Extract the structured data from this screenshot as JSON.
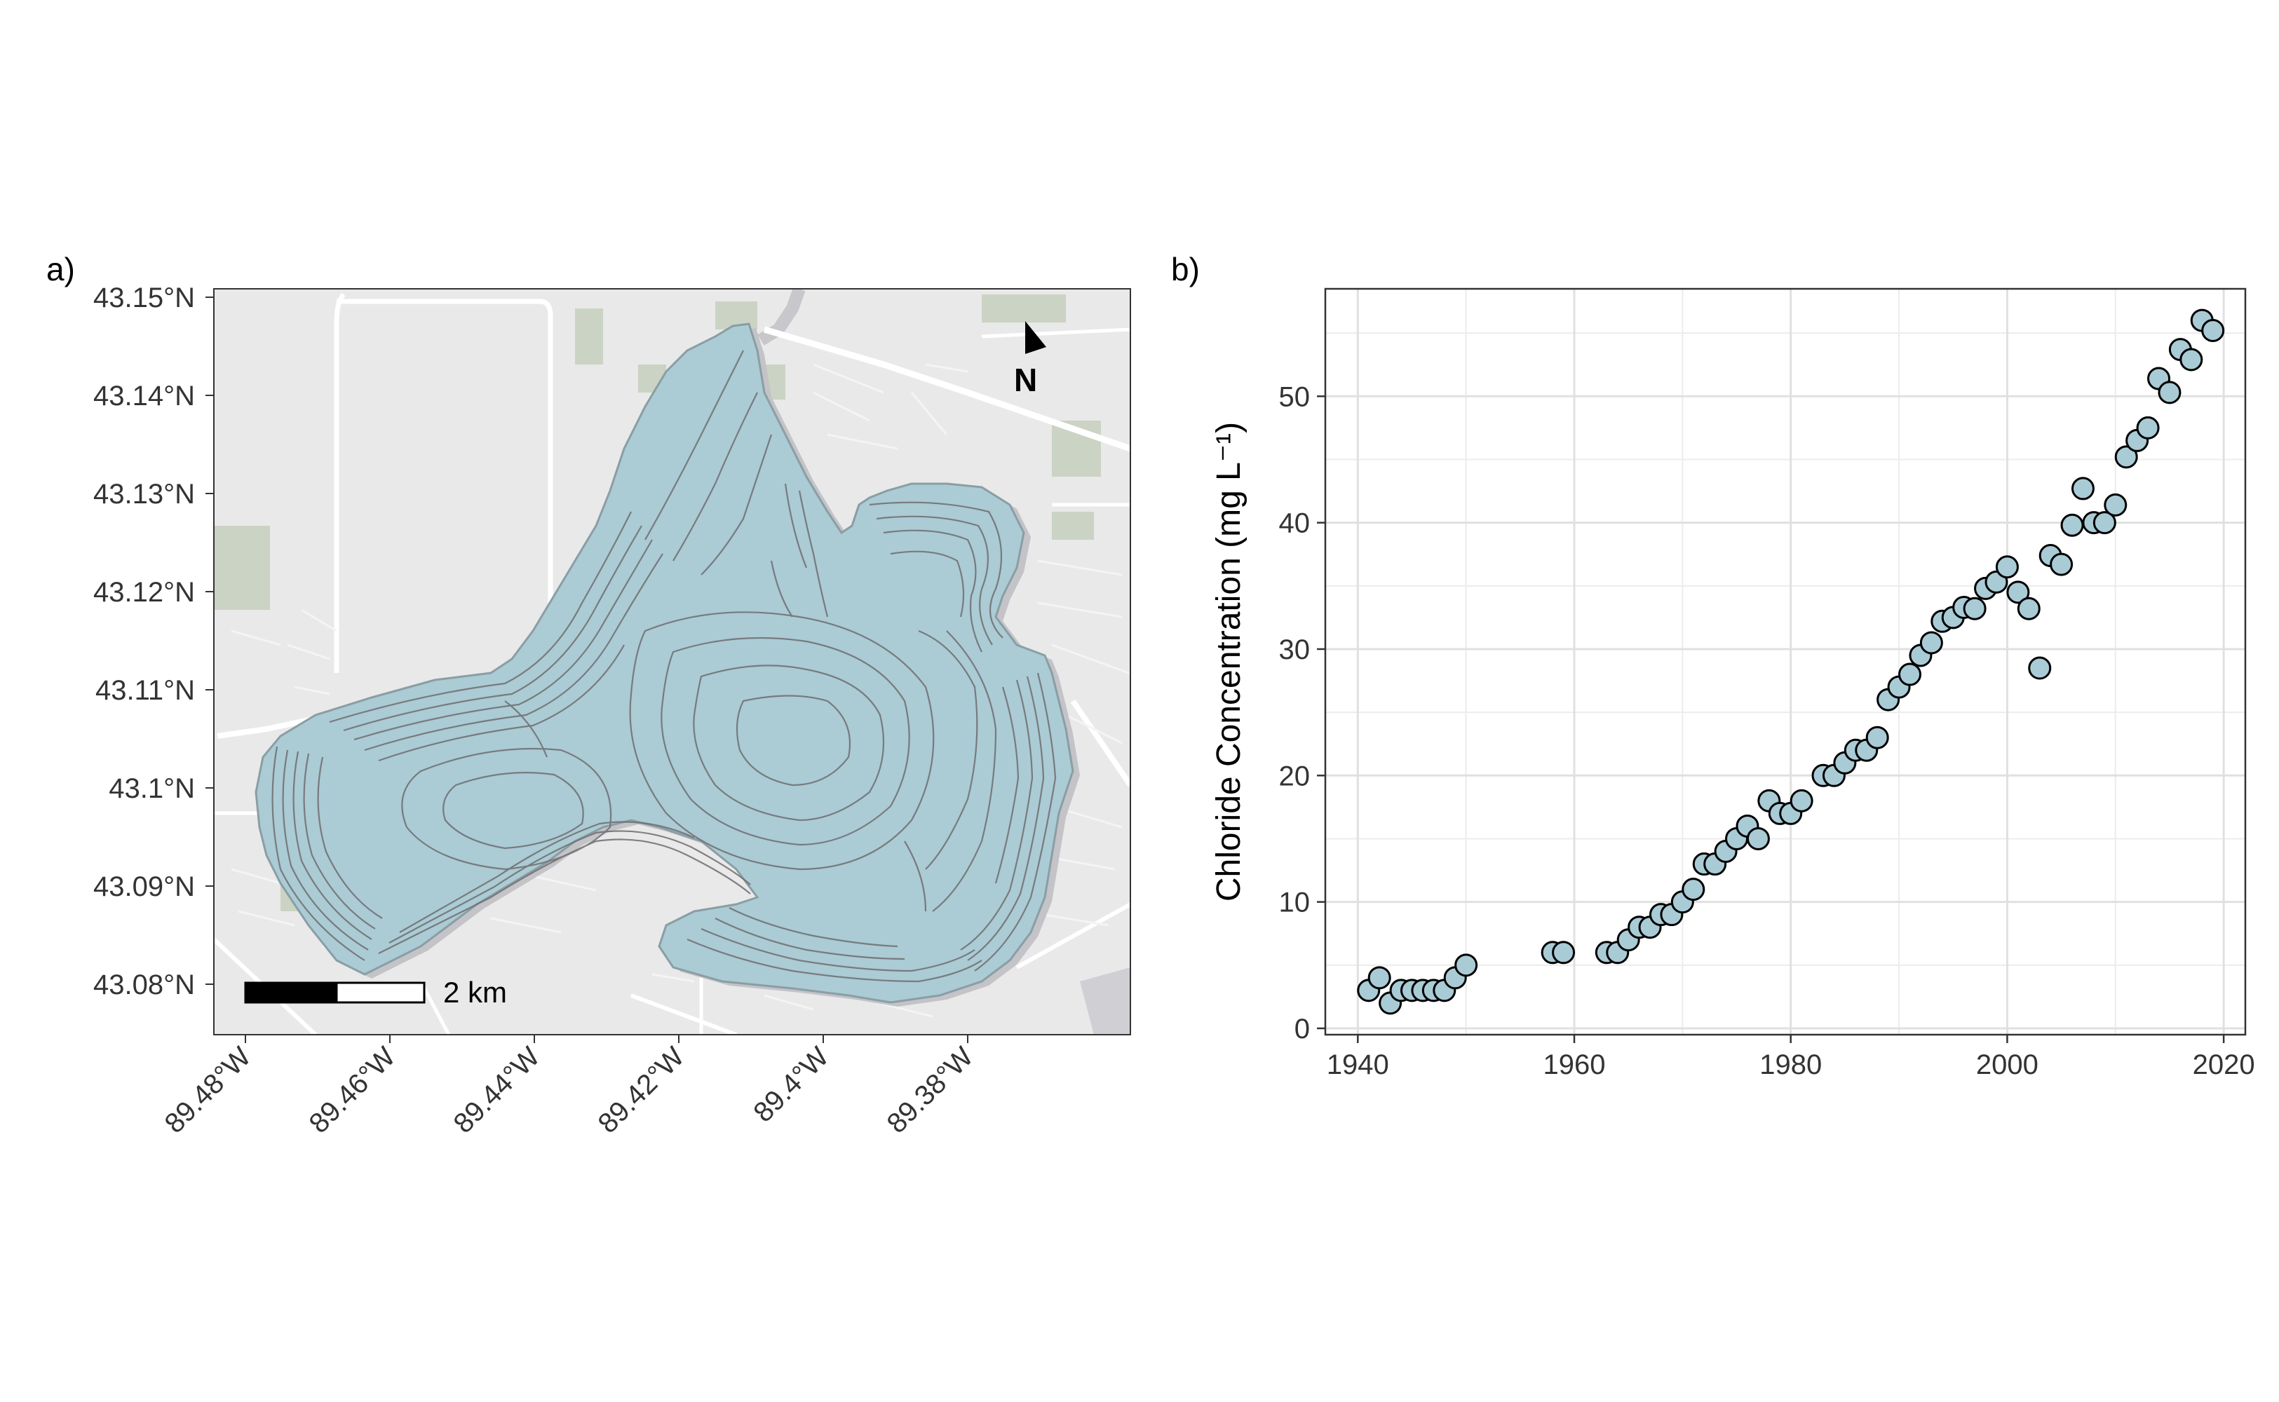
{
  "panel_a": {
    "label": "a)",
    "lat_ticks": [
      "43.15°N",
      "43.14°N",
      "43.13°N",
      "43.12°N",
      "43.11°N",
      "43.1°N",
      "43.09°N",
      "43.08°N"
    ],
    "lon_ticks": [
      "89.48°W",
      "89.46°W",
      "89.44°W",
      "89.42°W",
      "89.4°W",
      "89.38°W"
    ],
    "scale_bar_label": "2 km",
    "north_arrow_label": "N",
    "colors": {
      "land": "#e9e9e9",
      "lake": "#abcbd5",
      "contour": "#6e6e6e",
      "road": "#ffffff",
      "park": "#cbd3c4"
    }
  },
  "panel_b": {
    "label": "b)"
  },
  "chart_data": {
    "type": "scatter",
    "title": "",
    "xlabel": "",
    "ylabel": "Chloride Concentration (mg L⁻¹)",
    "xlim": [
      1937,
      2022
    ],
    "ylim": [
      -0.5,
      58.5
    ],
    "xticks": [
      1940,
      1960,
      1980,
      2000,
      2020
    ],
    "yticks": [
      0,
      10,
      20,
      30,
      40,
      50
    ],
    "grid": true,
    "marker_fill": "#a9cbd6",
    "marker_edge": "#000000",
    "x": [
      1941,
      1942,
      1943,
      1944,
      1945,
      1946,
      1947,
      1948,
      1949,
      1950,
      1958,
      1959,
      1963,
      1964,
      1965,
      1966,
      1967,
      1968,
      1969,
      1970,
      1971,
      1972,
      1973,
      1974,
      1975,
      1976,
      1977,
      1978,
      1979,
      1980,
      1981,
      1983,
      1984,
      1985,
      1986,
      1987,
      1988,
      1989,
      1990,
      1991,
      1992,
      1993,
      1994,
      1995,
      1996,
      1997,
      1998,
      1999,
      2000,
      2001,
      2002,
      2003,
      2004,
      2005,
      2006,
      2007,
      2008,
      2009,
      2010,
      2011,
      2012,
      2013,
      2014,
      2015,
      2016,
      2017,
      2018,
      2019
    ],
    "y": [
      3,
      4,
      2,
      3,
      3,
      3,
      3,
      3,
      4,
      5,
      6,
      6,
      6,
      6,
      7,
      8,
      8,
      9,
      9,
      10,
      11,
      13,
      13,
      14,
      15,
      16,
      15,
      18,
      17,
      17,
      18,
      20,
      20,
      21,
      22,
      22,
      23,
      26,
      27,
      28,
      29.5,
      30.5,
      32.2,
      32.5,
      33.3,
      33.2,
      34.8,
      35.3,
      36.5,
      34.5,
      33.2,
      28.5,
      37.4,
      36.7,
      39.8,
      42.7,
      40,
      40,
      41.4,
      45.2,
      46.5,
      47.5,
      51.4,
      50.3,
      53.7,
      52.9,
      56,
      55.2
    ]
  }
}
